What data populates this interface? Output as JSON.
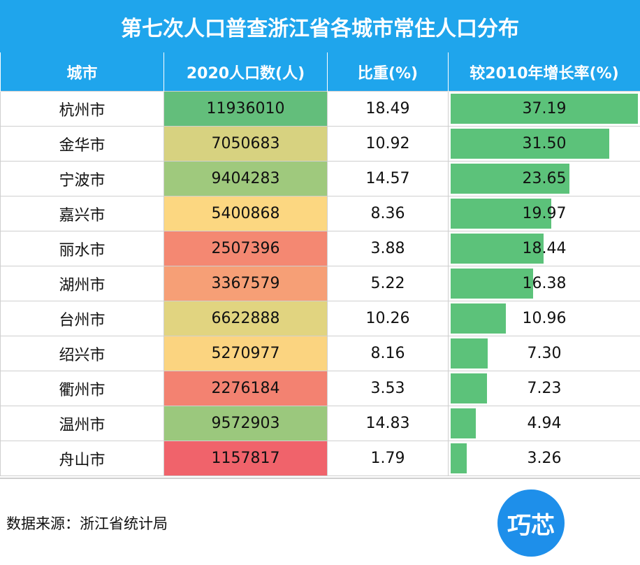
{
  "title": "第七次人口普查浙江省各城市常住人口分布",
  "headers": [
    "城市",
    "2020人口数(人)",
    "比重(%)",
    "较2010年增长率(%)"
  ],
  "source_note": "数据来源：浙江省统计局",
  "logo_text": "巧芯",
  "colors": {
    "header_bg": "#1fa5ec",
    "growth_bar": "#5cc27a",
    "population_scale": [
      "#f0636b",
      "#fcd981",
      "#63be7b"
    ]
  },
  "chart_data": {
    "type": "table",
    "title": "第七次人口普查浙江省各城市常住人口分布",
    "columns": [
      "城市",
      "2020人口数(人)",
      "比重(%)",
      "较2010年增长率(%)"
    ],
    "rows": [
      {
        "city": "杭州市",
        "population": "11936010",
        "share": "18.49",
        "growth": "37.19",
        "growth_value": 37.19,
        "pop_value": 11936010
      },
      {
        "city": "金华市",
        "population": "7050683",
        "share": "10.92",
        "growth": "31.50",
        "growth_value": 31.5,
        "pop_value": 7050683
      },
      {
        "city": "宁波市",
        "population": "9404283",
        "share": "14.57",
        "growth": "23.65",
        "growth_value": 23.65,
        "pop_value": 9404283
      },
      {
        "city": "嘉兴市",
        "population": "5400868",
        "share": "8.36",
        "growth": "19.97",
        "growth_value": 19.97,
        "pop_value": 5400868
      },
      {
        "city": "丽水市",
        "population": "2507396",
        "share": "3.88",
        "growth": "18.44",
        "growth_value": 18.44,
        "pop_value": 2507396
      },
      {
        "city": "湖州市",
        "population": "3367579",
        "share": "5.22",
        "growth": "16.38",
        "growth_value": 16.38,
        "pop_value": 3367579
      },
      {
        "city": "台州市",
        "population": "6622888",
        "share": "10.26",
        "growth": "10.96",
        "growth_value": 10.96,
        "pop_value": 6622888
      },
      {
        "city": "绍兴市",
        "population": "5270977",
        "share": "8.16",
        "growth": "7.30",
        "growth_value": 7.3,
        "pop_value": 5270977
      },
      {
        "city": "衢州市",
        "population": "2276184",
        "share": "3.53",
        "growth": "7.23",
        "growth_value": 7.23,
        "pop_value": 2276184
      },
      {
        "city": "温州市",
        "population": "9572903",
        "share": "14.83",
        "growth": "4.94",
        "growth_value": 4.94,
        "pop_value": 9572903
      },
      {
        "city": "舟山市",
        "population": "1157817",
        "share": "1.79",
        "growth": "3.26",
        "growth_value": 3.26,
        "pop_value": 1157817
      }
    ]
  }
}
